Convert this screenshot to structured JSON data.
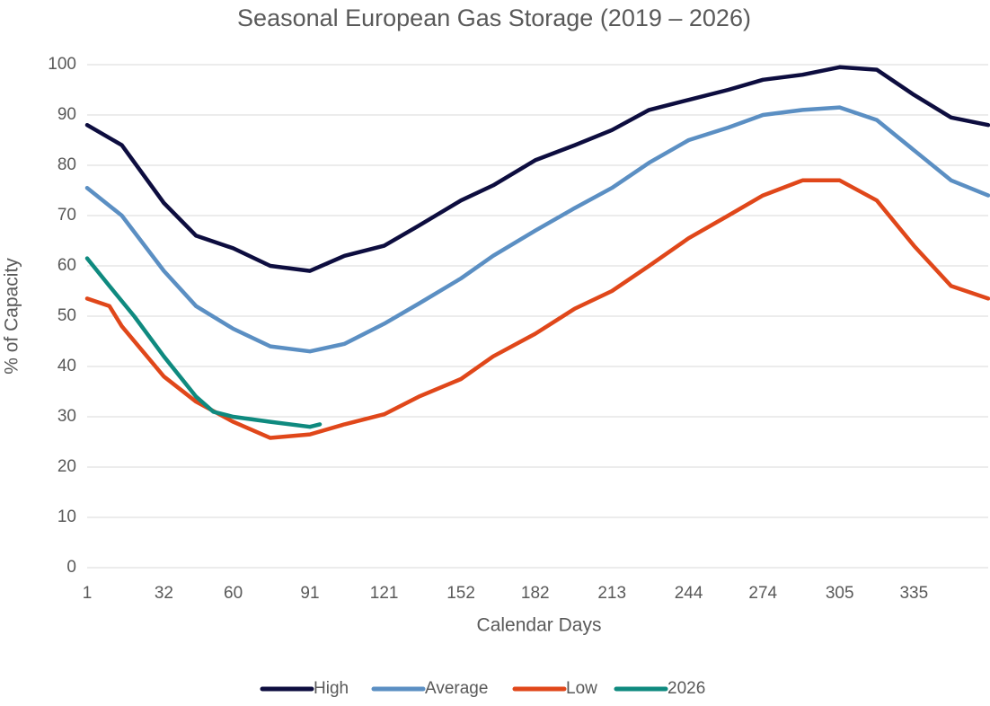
{
  "chart_data": {
    "type": "line",
    "title": "Seasonal European Gas Storage (2019 – 2026)",
    "xlabel": "Calendar Days",
    "ylabel": "% of Capacity",
    "xlim": [
      1,
      365
    ],
    "ylim": [
      0,
      100
    ],
    "xticks": [
      1,
      32,
      60,
      91,
      121,
      152,
      182,
      213,
      244,
      274,
      305,
      335
    ],
    "yticks": [
      0,
      10,
      20,
      30,
      40,
      50,
      60,
      70,
      80,
      90,
      100
    ],
    "grid": true,
    "legend": "bottom",
    "series": [
      {
        "name": "High",
        "color": "#0d0d3f",
        "x": [
          1,
          15,
          32,
          45,
          60,
          75,
          91,
          105,
          121,
          135,
          152,
          165,
          182,
          198,
          213,
          228,
          244,
          260,
          274,
          290,
          305,
          320,
          335,
          350,
          365
        ],
        "values": [
          88,
          84,
          72.5,
          66,
          63.5,
          60,
          59,
          62,
          64,
          68,
          73,
          76,
          81,
          84,
          87,
          91,
          93,
          95,
          97,
          98,
          99.5,
          99,
          94,
          89.5,
          88
        ]
      },
      {
        "name": "Average",
        "color": "#5b8fc3",
        "x": [
          1,
          15,
          32,
          45,
          60,
          75,
          91,
          105,
          121,
          135,
          152,
          165,
          182,
          198,
          213,
          228,
          244,
          260,
          274,
          290,
          305,
          320,
          335,
          350,
          365
        ],
        "values": [
          75.5,
          70,
          59,
          52,
          47.5,
          44,
          43,
          44.5,
          48.5,
          52.5,
          57.5,
          62,
          67,
          71.5,
          75.5,
          80.5,
          85,
          87.5,
          90,
          91,
          91.5,
          89,
          83,
          77,
          74
        ]
      },
      {
        "name": "Low",
        "color": "#e0471a",
        "x": [
          1,
          10,
          15,
          32,
          45,
          60,
          75,
          91,
          105,
          121,
          135,
          152,
          165,
          182,
          198,
          213,
          228,
          244,
          260,
          274,
          290,
          305,
          320,
          335,
          350,
          365
        ],
        "values": [
          53.5,
          52,
          48,
          38,
          33,
          29,
          25.8,
          26.5,
          28.5,
          30.5,
          34,
          37.5,
          42,
          46.5,
          51.5,
          55,
          60,
          65.5,
          70,
          74,
          77,
          77,
          73,
          64,
          56,
          53.5
        ]
      },
      {
        "name": "2026",
        "color": "#0f8a7f",
        "x": [
          1,
          10,
          20,
          32,
          45,
          52,
          60,
          75,
          91,
          95
        ],
        "values": [
          61.5,
          56,
          50,
          42,
          34,
          31,
          30,
          29,
          28,
          28.5
        ]
      }
    ]
  }
}
